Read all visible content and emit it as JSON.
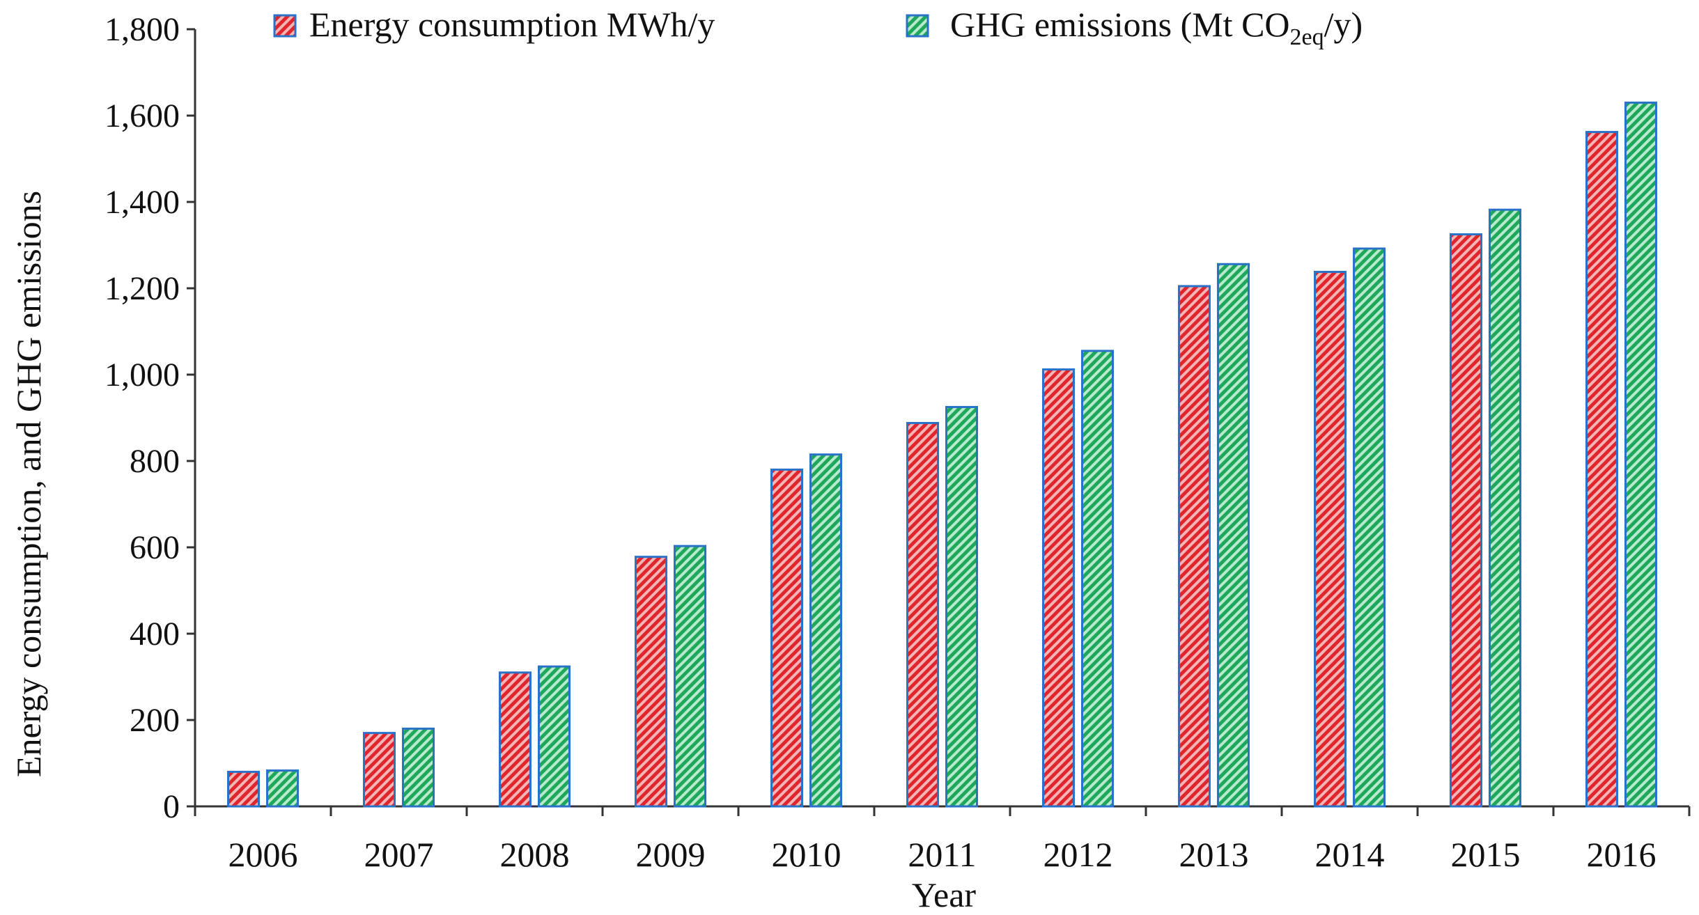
{
  "chart_data": {
    "type": "bar",
    "title": "",
    "xlabel": "Year",
    "ylabel": "Energy consumption, and GHG emissions",
    "ylim": [
      0,
      1800
    ],
    "yticks": [
      0,
      200,
      400,
      600,
      800,
      1000,
      1200,
      1400,
      1600,
      1800
    ],
    "ytick_labels": [
      "0",
      "200",
      "400",
      "600",
      "800",
      "1,000",
      "1,200",
      "1,400",
      "1,600",
      "1,800"
    ],
    "categories": [
      "2006",
      "2007",
      "2008",
      "2009",
      "2010",
      "2011",
      "2012",
      "2013",
      "2014",
      "2015",
      "2016"
    ],
    "legend_position": "top",
    "grid": false,
    "series": [
      {
        "name": "Energy consumption MWh/y",
        "values": [
          80,
          170,
          310,
          578,
          780,
          888,
          1012,
          1205,
          1238,
          1325,
          1562
        ],
        "color": "#e8474c",
        "pattern": "diagonal-hatch"
      },
      {
        "name": "GHG emissions (Mt CO2eq/y)",
        "legend_main": "GHG emissions  (Mt CO",
        "legend_sub": "2eq",
        "legend_end": "/y)",
        "values": [
          83,
          180,
          324,
          603,
          815,
          925,
          1055,
          1256,
          1292,
          1382,
          1630
        ],
        "color": "#2fb872",
        "pattern": "diagonal-hatch"
      }
    ],
    "bar_border_color": "#2a72c8",
    "axis_color": "#333333"
  }
}
